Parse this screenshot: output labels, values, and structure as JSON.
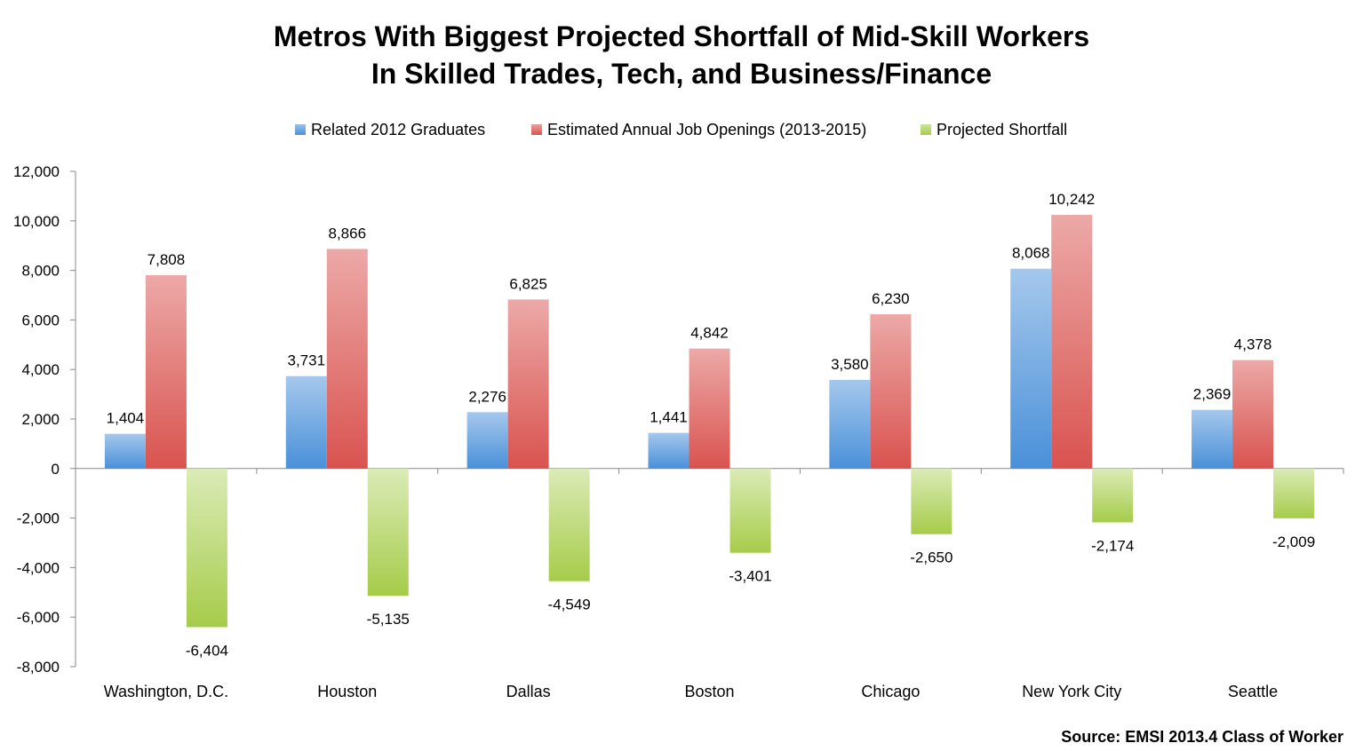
{
  "chart_data": {
    "type": "bar",
    "title": "Metros With Biggest Projected Shortfall of Mid-Skill Workers",
    "subtitle": "In Skilled Trades, Tech, and Business/Finance",
    "categories": [
      "Washington, D.C.",
      "Houston",
      "Dallas",
      "Boston",
      "Chicago",
      "New York City",
      "Seattle"
    ],
    "series": [
      {
        "name": "Related 2012 Graduates",
        "color": "#4a90d9",
        "values": [
          1404,
          3731,
          2276,
          1441,
          3580,
          8068,
          2369
        ],
        "labels": [
          "1,404",
          "3,731",
          "2,276",
          "1,441",
          "3,580",
          "8,068",
          "2,369"
        ]
      },
      {
        "name": "Estimated Annual Job Openings (2013-2015)",
        "color": "#d9534f",
        "values": [
          7808,
          8866,
          6825,
          4842,
          6230,
          10242,
          4378
        ],
        "labels": [
          "7,808",
          "8,866",
          "6,825",
          "4,842",
          "6,230",
          "10,242",
          "4,378"
        ]
      },
      {
        "name": "Projected Shortfall",
        "color": "#a6cc4a",
        "values": [
          -6404,
          -5135,
          -4549,
          -3401,
          -2650,
          -2174,
          -2009
        ],
        "labels": [
          "-6,404",
          "-5,135",
          "-4,549",
          "-3,401",
          "-2,650",
          "-2,174",
          "-2,009"
        ]
      }
    ],
    "ylim": [
      -8000,
      12000
    ],
    "yticks": [
      12000,
      10000,
      8000,
      6000,
      4000,
      2000,
      0,
      -2000,
      -4000,
      -6000,
      -8000
    ],
    "ytick_labels": [
      "12,000",
      "10,000",
      "8,000",
      "6,000",
      "4,000",
      "2,000",
      "0",
      "-2,000",
      "-4,000",
      "-6,000",
      "-8,000"
    ],
    "xlabel": "",
    "ylabel": "",
    "grid": false,
    "legend": "top"
  },
  "source": "Source: EMSI 2013.4 Class of Worker"
}
